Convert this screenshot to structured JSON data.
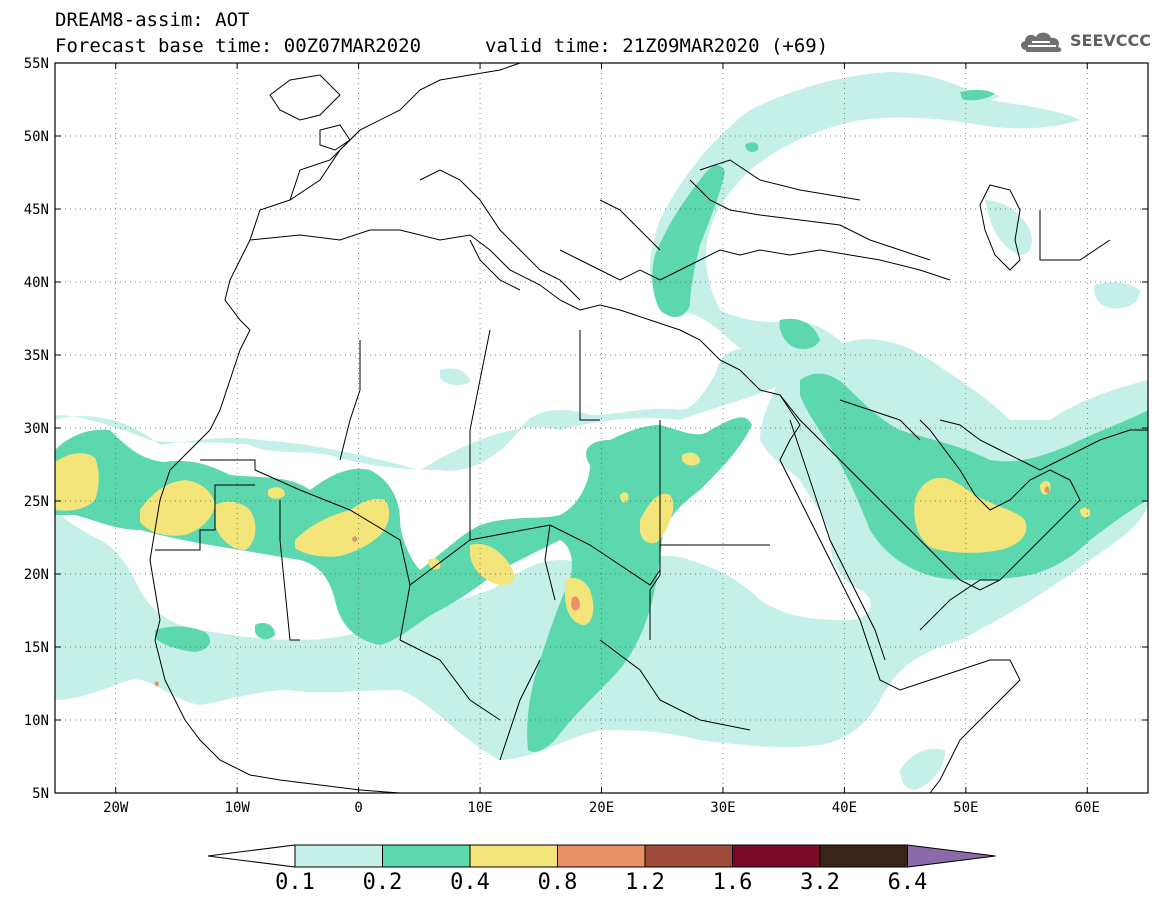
{
  "header": {
    "title_line1": "DREAM8-assim: AOT",
    "title_line2": "Forecast base time: 00Z07MAR2020",
    "valid_time": "valid time: 21Z09MAR2020 (+69)"
  },
  "logo": {
    "text": "SEEVCCC",
    "icon": "cloud-icon"
  },
  "map": {
    "lat_labels": [
      "55N",
      "50N",
      "45N",
      "40N",
      "35N",
      "30N",
      "25N",
      "20N",
      "15N",
      "10N",
      "5N"
    ],
    "lon_labels": [
      "20W",
      "10W",
      "0",
      "10E",
      "20E",
      "30E",
      "40E",
      "50E",
      "60E"
    ],
    "lon_range": [
      -25,
      65
    ],
    "lat_range": [
      5,
      55
    ],
    "grid": true,
    "grid_style": "dotted"
  },
  "legend": {
    "thresholds": [
      "0.1",
      "0.2",
      "0.4",
      "0.8",
      "1.2",
      "1.6",
      "3.2",
      "6.4"
    ],
    "colors": [
      "#c4f0e8",
      "#5dd8ae",
      "#f4e57a",
      "#ea9067",
      "#a04a3c",
      "#7a0a28",
      "#3a2418",
      "#8a6aa8"
    ],
    "under_color": "#ffffff",
    "over_color": "#8a6aa8"
  }
}
